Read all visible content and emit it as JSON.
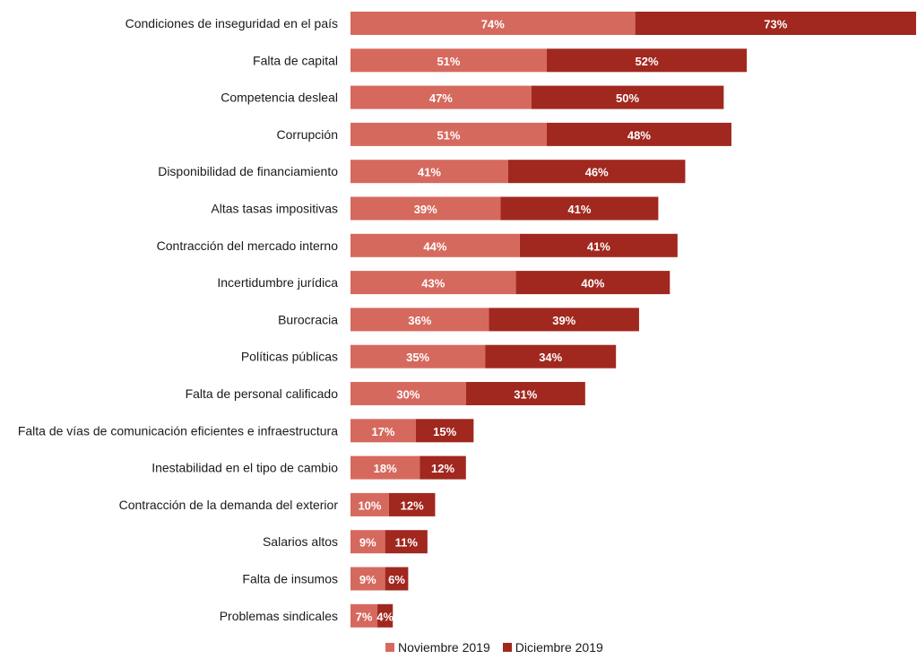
{
  "chart_data": {
    "type": "bar",
    "orientation": "horizontal",
    "stacked": true,
    "categories": [
      "Condiciones de inseguridad en el país",
      "Falta de capital",
      "Competencia desleal",
      "Corrupción",
      "Disponibilidad de financiamiento",
      "Altas tasas impositivas",
      "Contracción del mercado interno",
      "Incertidumbre jurídica",
      "Burocracia",
      "Políticas públicas",
      "Falta de personal calificado",
      "Falta de vías de comunicación eficientes e infraestructura",
      "Inestabilidad en el tipo de cambio",
      "Contracción de la demanda del exterior",
      "Salarios altos",
      "Falta de insumos",
      "Problemas sindicales"
    ],
    "series": [
      {
        "name": "Noviembre 2019",
        "color": "#d6695e",
        "values": [
          74,
          51,
          47,
          51,
          41,
          39,
          44,
          43,
          36,
          35,
          30,
          17,
          18,
          10,
          9,
          9,
          7
        ],
        "labels": [
          "74%",
          "51%",
          "47%",
          "51%",
          "41%",
          "39%",
          "44%",
          "43%",
          "36%",
          "35%",
          "30%",
          "17%",
          "18%",
          "10%",
          "9%",
          "9%",
          "7%"
        ]
      },
      {
        "name": "Diciembre 2019",
        "color": "#a1281f",
        "values": [
          73,
          52,
          50,
          48,
          46,
          41,
          41,
          40,
          39,
          34,
          31,
          15,
          12,
          12,
          11,
          6,
          4
        ],
        "labels": [
          "73%",
          "52%",
          "50%",
          "48%",
          "46%",
          "41%",
          "41%",
          "40%",
          "39%",
          "34%",
          "31%",
          "15%",
          "12%",
          "12%",
          "11%",
          "6%",
          "4%"
        ]
      }
    ],
    "xlim": [
      0,
      147
    ],
    "grid": false,
    "legend_position": "bottom"
  }
}
